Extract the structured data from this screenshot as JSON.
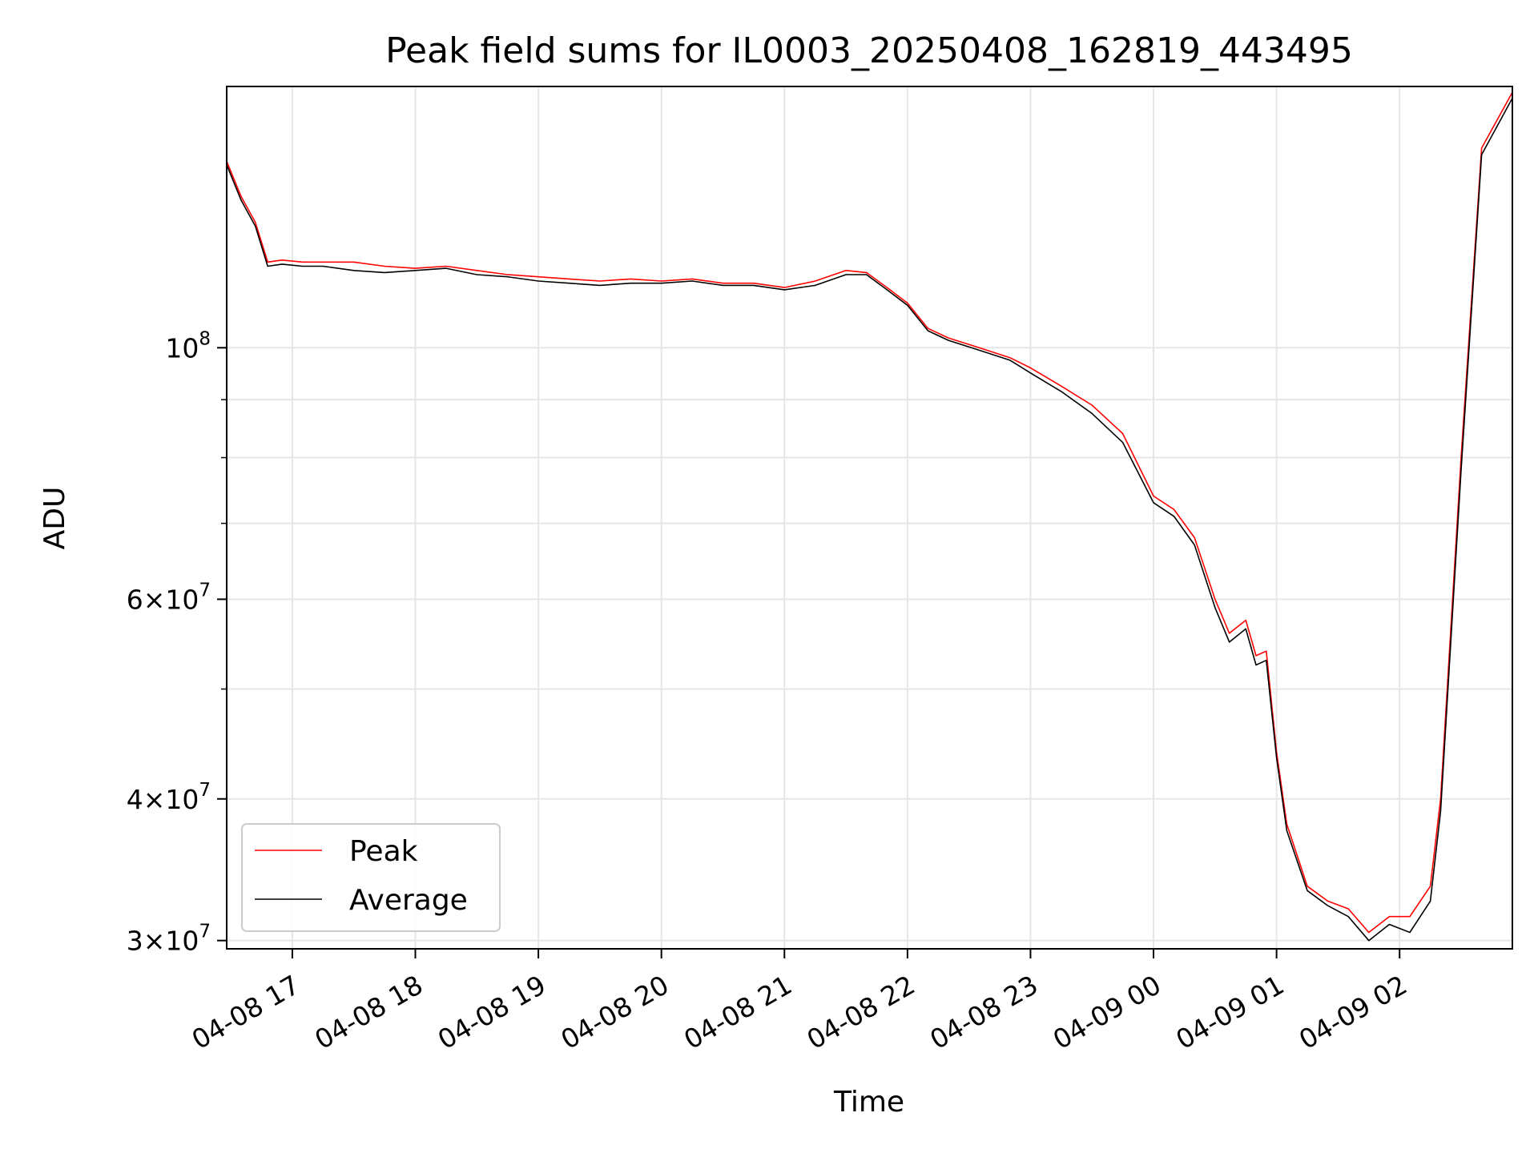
{
  "chart_data": {
    "type": "line",
    "title": "Peak field sums for IL0003_20250408_162819_443495",
    "xlabel": "Time",
    "ylabel": "ADU",
    "yscale": "log",
    "ylim": [
      29500000,
      170000000
    ],
    "xlim": [
      "2025-04-08 16:28",
      "2025-04-09 02:55"
    ],
    "grid": true,
    "legend_position": "lower-left",
    "x_ticks": [
      {
        "t": "2025-04-08 17:00",
        "label": "04-08 17"
      },
      {
        "t": "2025-04-08 18:00",
        "label": "04-08 18"
      },
      {
        "t": "2025-04-08 19:00",
        "label": "04-08 19"
      },
      {
        "t": "2025-04-08 20:00",
        "label": "04-08 20"
      },
      {
        "t": "2025-04-08 21:00",
        "label": "04-08 21"
      },
      {
        "t": "2025-04-08 22:00",
        "label": "04-08 22"
      },
      {
        "t": "2025-04-08 23:00",
        "label": "04-08 23"
      },
      {
        "t": "2025-04-09 00:00",
        "label": "04-09 00"
      },
      {
        "t": "2025-04-09 01:00",
        "label": "04-09 01"
      },
      {
        "t": "2025-04-09 02:00",
        "label": "04-09 02"
      }
    ],
    "y_ticks": [
      {
        "value": 30000000,
        "mantissa": "3",
        "exp": "7"
      },
      {
        "value": 40000000,
        "mantissa": "4",
        "exp": "7"
      },
      {
        "value": 60000000,
        "mantissa": "6",
        "exp": "7"
      },
      {
        "value": 100000000,
        "mantissa": "",
        "exp": "8"
      }
    ],
    "y_minor_ticks": [
      50000000,
      70000000,
      80000000,
      90000000
    ],
    "series": [
      {
        "name": "Peak",
        "color": "#ff0000",
        "points": [
          [
            "2025-04-08 16:28",
            146000000
          ],
          [
            "2025-04-08 16:35",
            136000000
          ],
          [
            "2025-04-08 16:42",
            129000000
          ],
          [
            "2025-04-08 16:48",
            119000000
          ],
          [
            "2025-04-08 16:55",
            119500000
          ],
          [
            "2025-04-08 17:05",
            119000000
          ],
          [
            "2025-04-08 17:15",
            119000000
          ],
          [
            "2025-04-08 17:30",
            119000000
          ],
          [
            "2025-04-08 17:45",
            118000000
          ],
          [
            "2025-04-08 18:00",
            117500000
          ],
          [
            "2025-04-08 18:15",
            118000000
          ],
          [
            "2025-04-08 18:30",
            117000000
          ],
          [
            "2025-04-08 18:45",
            116000000
          ],
          [
            "2025-04-08 19:00",
            115500000
          ],
          [
            "2025-04-08 19:15",
            115000000
          ],
          [
            "2025-04-08 19:30",
            114500000
          ],
          [
            "2025-04-08 19:45",
            115000000
          ],
          [
            "2025-04-08 20:00",
            114500000
          ],
          [
            "2025-04-08 20:15",
            115000000
          ],
          [
            "2025-04-08 20:30",
            114000000
          ],
          [
            "2025-04-08 20:45",
            114000000
          ],
          [
            "2025-04-08 21:00",
            113000000
          ],
          [
            "2025-04-08 21:15",
            114500000
          ],
          [
            "2025-04-08 21:30",
            117000000
          ],
          [
            "2025-04-08 21:40",
            116500000
          ],
          [
            "2025-04-08 21:50",
            113000000
          ],
          [
            "2025-04-08 22:00",
            109500000
          ],
          [
            "2025-04-08 22:10",
            104000000
          ],
          [
            "2025-04-08 22:20",
            102000000
          ],
          [
            "2025-04-08 22:35",
            100000000
          ],
          [
            "2025-04-08 22:50",
            98000000
          ],
          [
            "2025-04-08 23:00",
            96000000
          ],
          [
            "2025-04-08 23:15",
            92500000
          ],
          [
            "2025-04-08 23:30",
            89000000
          ],
          [
            "2025-04-08 23:45",
            84000000
          ],
          [
            "2025-04-09 00:00",
            74000000
          ],
          [
            "2025-04-09 00:10",
            72000000
          ],
          [
            "2025-04-09 00:20",
            68000000
          ],
          [
            "2025-04-09 00:30",
            60000000
          ],
          [
            "2025-04-09 00:37",
            56000000
          ],
          [
            "2025-04-09 00:45",
            57500000
          ],
          [
            "2025-04-09 00:50",
            53500000
          ],
          [
            "2025-04-09 00:55",
            54000000
          ],
          [
            "2025-04-09 01:00",
            44000000
          ],
          [
            "2025-04-09 01:05",
            38000000
          ],
          [
            "2025-04-09 01:15",
            33500000
          ],
          [
            "2025-04-09 01:25",
            32500000
          ],
          [
            "2025-04-09 01:35",
            32000000
          ],
          [
            "2025-04-09 01:45",
            30500000
          ],
          [
            "2025-04-09 01:55",
            31500000
          ],
          [
            "2025-04-09 02:05",
            31500000
          ],
          [
            "2025-04-09 02:15",
            33500000
          ],
          [
            "2025-04-09 02:20",
            40000000
          ],
          [
            "2025-04-09 02:30",
            80000000
          ],
          [
            "2025-04-09 02:40",
            150000000
          ],
          [
            "2025-04-09 02:55",
            168000000
          ]
        ]
      },
      {
        "name": "Average",
        "color": "#000000",
        "points": [
          [
            "2025-04-08 16:28",
            145000000
          ],
          [
            "2025-04-08 16:35",
            135000000
          ],
          [
            "2025-04-08 16:42",
            128000000
          ],
          [
            "2025-04-08 16:48",
            118000000
          ],
          [
            "2025-04-08 16:55",
            118500000
          ],
          [
            "2025-04-08 17:05",
            118000000
          ],
          [
            "2025-04-08 17:15",
            118000000
          ],
          [
            "2025-04-08 17:30",
            117000000
          ],
          [
            "2025-04-08 17:45",
            116500000
          ],
          [
            "2025-04-08 18:00",
            117000000
          ],
          [
            "2025-04-08 18:15",
            117500000
          ],
          [
            "2025-04-08 18:30",
            116000000
          ],
          [
            "2025-04-08 18:45",
            115500000
          ],
          [
            "2025-04-08 19:00",
            114500000
          ],
          [
            "2025-04-08 19:15",
            114000000
          ],
          [
            "2025-04-08 19:30",
            113500000
          ],
          [
            "2025-04-08 19:45",
            114000000
          ],
          [
            "2025-04-08 20:00",
            114000000
          ],
          [
            "2025-04-08 20:15",
            114500000
          ],
          [
            "2025-04-08 20:30",
            113500000
          ],
          [
            "2025-04-08 20:45",
            113500000
          ],
          [
            "2025-04-08 21:00",
            112500000
          ],
          [
            "2025-04-08 21:15",
            113500000
          ],
          [
            "2025-04-08 21:30",
            116000000
          ],
          [
            "2025-04-08 21:40",
            116000000
          ],
          [
            "2025-04-08 21:50",
            112500000
          ],
          [
            "2025-04-08 22:00",
            109000000
          ],
          [
            "2025-04-08 22:10",
            103500000
          ],
          [
            "2025-04-08 22:20",
            101500000
          ],
          [
            "2025-04-08 22:35",
            99500000
          ],
          [
            "2025-04-08 22:50",
            97500000
          ],
          [
            "2025-04-08 23:00",
            95000000
          ],
          [
            "2025-04-08 23:15",
            91500000
          ],
          [
            "2025-04-08 23:30",
            87500000
          ],
          [
            "2025-04-08 23:45",
            82500000
          ],
          [
            "2025-04-09 00:00",
            73000000
          ],
          [
            "2025-04-09 00:10",
            71000000
          ],
          [
            "2025-04-09 00:20",
            67000000
          ],
          [
            "2025-04-09 00:30",
            59000000
          ],
          [
            "2025-04-09 00:37",
            55000000
          ],
          [
            "2025-04-09 00:45",
            56500000
          ],
          [
            "2025-04-09 00:50",
            52500000
          ],
          [
            "2025-04-09 00:55",
            53000000
          ],
          [
            "2025-04-09 01:00",
            43500000
          ],
          [
            "2025-04-09 01:05",
            37500000
          ],
          [
            "2025-04-09 01:15",
            33200000
          ],
          [
            "2025-04-09 01:25",
            32200000
          ],
          [
            "2025-04-09 01:35",
            31500000
          ],
          [
            "2025-04-09 01:45",
            30000000
          ],
          [
            "2025-04-09 01:55",
            31000000
          ],
          [
            "2025-04-09 02:05",
            30500000
          ],
          [
            "2025-04-09 02:15",
            32500000
          ],
          [
            "2025-04-09 02:20",
            39000000
          ],
          [
            "2025-04-09 02:30",
            78000000
          ],
          [
            "2025-04-09 02:40",
            148000000
          ],
          [
            "2025-04-09 02:55",
            166000000
          ]
        ]
      }
    ]
  }
}
